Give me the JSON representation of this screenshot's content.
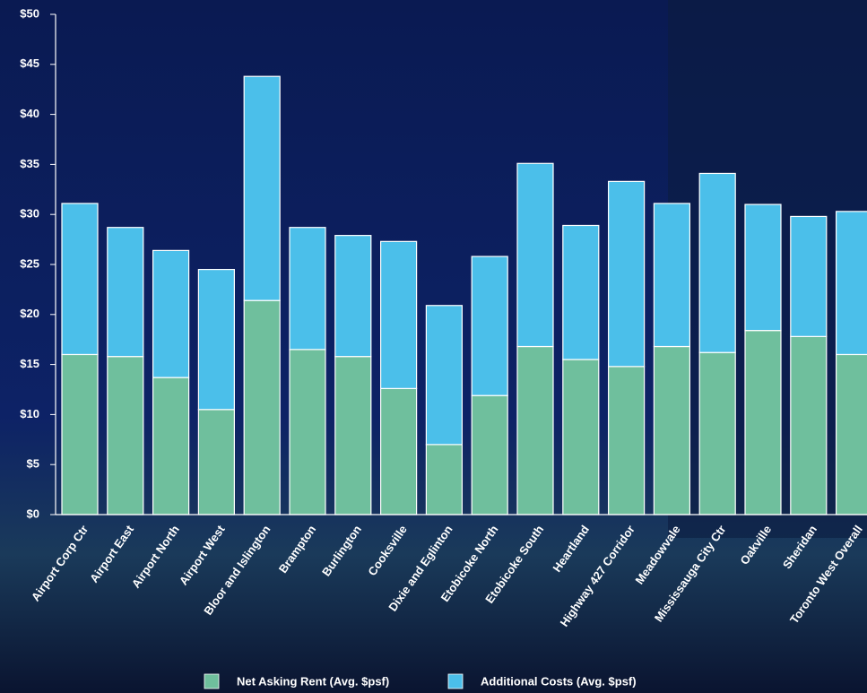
{
  "chart_data": {
    "type": "stacked_bar",
    "categories": [
      "Airport Corp Ctr",
      "Airport East",
      "Airport North",
      "Airport West",
      "Bloor and Islington",
      "Brampton",
      "Burlington",
      "Cooksville",
      "Dixie and Eglinton",
      "Etobicoke North",
      "Etobicoke South",
      "Heartland",
      "Highway 427 Corridor",
      "Meadowvale",
      "Mississauga City Ctr",
      "Oakville",
      "Sheridan",
      "Toronto West Overall"
    ],
    "series": [
      {
        "name": "Net Asking Rent (Avg. $psf)",
        "color": "#6fbf9d",
        "values": [
          16.0,
          15.8,
          13.7,
          10.5,
          21.4,
          16.5,
          15.8,
          12.6,
          7.0,
          11.9,
          16.8,
          15.5,
          14.8,
          16.8,
          16.2,
          18.4,
          17.8,
          16.0
        ]
      },
      {
        "name": "Additional Costs (Avg. $psf)",
        "color": "#4bbfea",
        "values": [
          15.1,
          12.9,
          12.7,
          14.0,
          22.4,
          12.2,
          12.1,
          14.7,
          13.9,
          13.9,
          18.3,
          13.4,
          18.5,
          14.3,
          17.9,
          12.6,
          12.0,
          14.3
        ]
      }
    ],
    "ylim": [
      0,
      50
    ],
    "yticks": [
      {
        "value": 0,
        "label": "$0"
      },
      {
        "value": 5,
        "label": "$5"
      },
      {
        "value": 10,
        "label": "$10"
      },
      {
        "value": 15,
        "label": "$15"
      },
      {
        "value": 20,
        "label": "$20"
      },
      {
        "value": 25,
        "label": "$25"
      },
      {
        "value": 30,
        "label": "$30"
      },
      {
        "value": 35,
        "label": "$35"
      },
      {
        "value": 40,
        "label": "$40"
      },
      {
        "value": 45,
        "label": "$45"
      },
      {
        "value": 50,
        "label": "$50"
      }
    ],
    "legend": "bottom"
  }
}
